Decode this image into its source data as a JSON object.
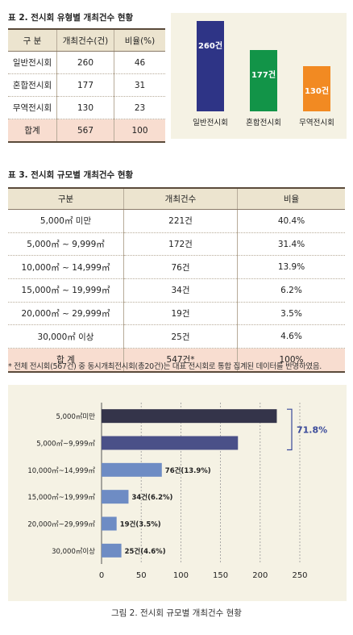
{
  "table2": {
    "caption": "표 2. 전시회 유형별 개최건수 현황",
    "headers": [
      "구 분",
      "개최건수(건)",
      "비율(%)"
    ],
    "rows": [
      [
        "일반전시회",
        "260",
        "46"
      ],
      [
        "혼합전시회",
        "177",
        "31"
      ],
      [
        "무역전시회",
        "130",
        "23"
      ],
      [
        "합계",
        "567",
        "100"
      ]
    ]
  },
  "chart1": {
    "categories": [
      "일반전시회",
      "혼합전시회",
      "무역전시회"
    ],
    "values": [
      260,
      177,
      130
    ],
    "labels": [
      "260건",
      "177건",
      "130건"
    ],
    "colors": [
      "#2e3486",
      "#129448",
      "#f28a22"
    ]
  },
  "table3": {
    "caption": "표 3. 전시회 규모별 개최건수 현황",
    "headers": [
      "구분",
      "개최건수",
      "비율"
    ],
    "rows": [
      [
        "5,000㎡ 미만",
        "221건",
        "40.4%"
      ],
      [
        "5,000㎡ ~ 9,999㎡",
        "172건",
        "31.4%"
      ],
      [
        "10,000㎡ ~ 14,999㎡",
        "76건",
        "13.9%"
      ],
      [
        "15,000㎡ ~ 19,999㎡",
        "34건",
        "6.2%"
      ],
      [
        "20,000㎡ ~ 29,999㎡",
        "19건",
        "3.5%"
      ],
      [
        "30,000㎡ 이상",
        "25건",
        "4.6%"
      ],
      [
        "합 계",
        "547건*",
        "100%"
      ]
    ]
  },
  "note": "* 전체 전시회(567건) 중 동시개최전시회(총20건)는 대표 전시회로 통합 집계된 데이터를 반영하였음.",
  "chart_data": {
    "type": "bar",
    "orientation": "horizontal",
    "categories": [
      "5,000㎡미만",
      "5,000㎡~9,999㎡",
      "10,000㎡~14,999㎡",
      "15,000㎡~19,999㎡",
      "20,000㎡~29,999㎡",
      "30,000㎡이상"
    ],
    "values": [
      221,
      172,
      76,
      34,
      19,
      25
    ],
    "data_labels": [
      "",
      "",
      "76건(13.9%)",
      "34건(6.2%)",
      "19건(3.5%)",
      "25건(4.6%)"
    ],
    "colors": [
      "#34344a",
      "#4a5088",
      "#6e8cc4",
      "#6e8cc4",
      "#6e8cc4",
      "#6e8cc4"
    ],
    "xlim": [
      0,
      250
    ],
    "xticks": [
      "0",
      "50",
      "100",
      "150",
      "200",
      "250"
    ],
    "grid": true,
    "bracket_label": "71.8%",
    "bracket_color": "#3a4a9a"
  },
  "figure_caption": "그림 2. 전시회 규모별 개최건수 현황"
}
